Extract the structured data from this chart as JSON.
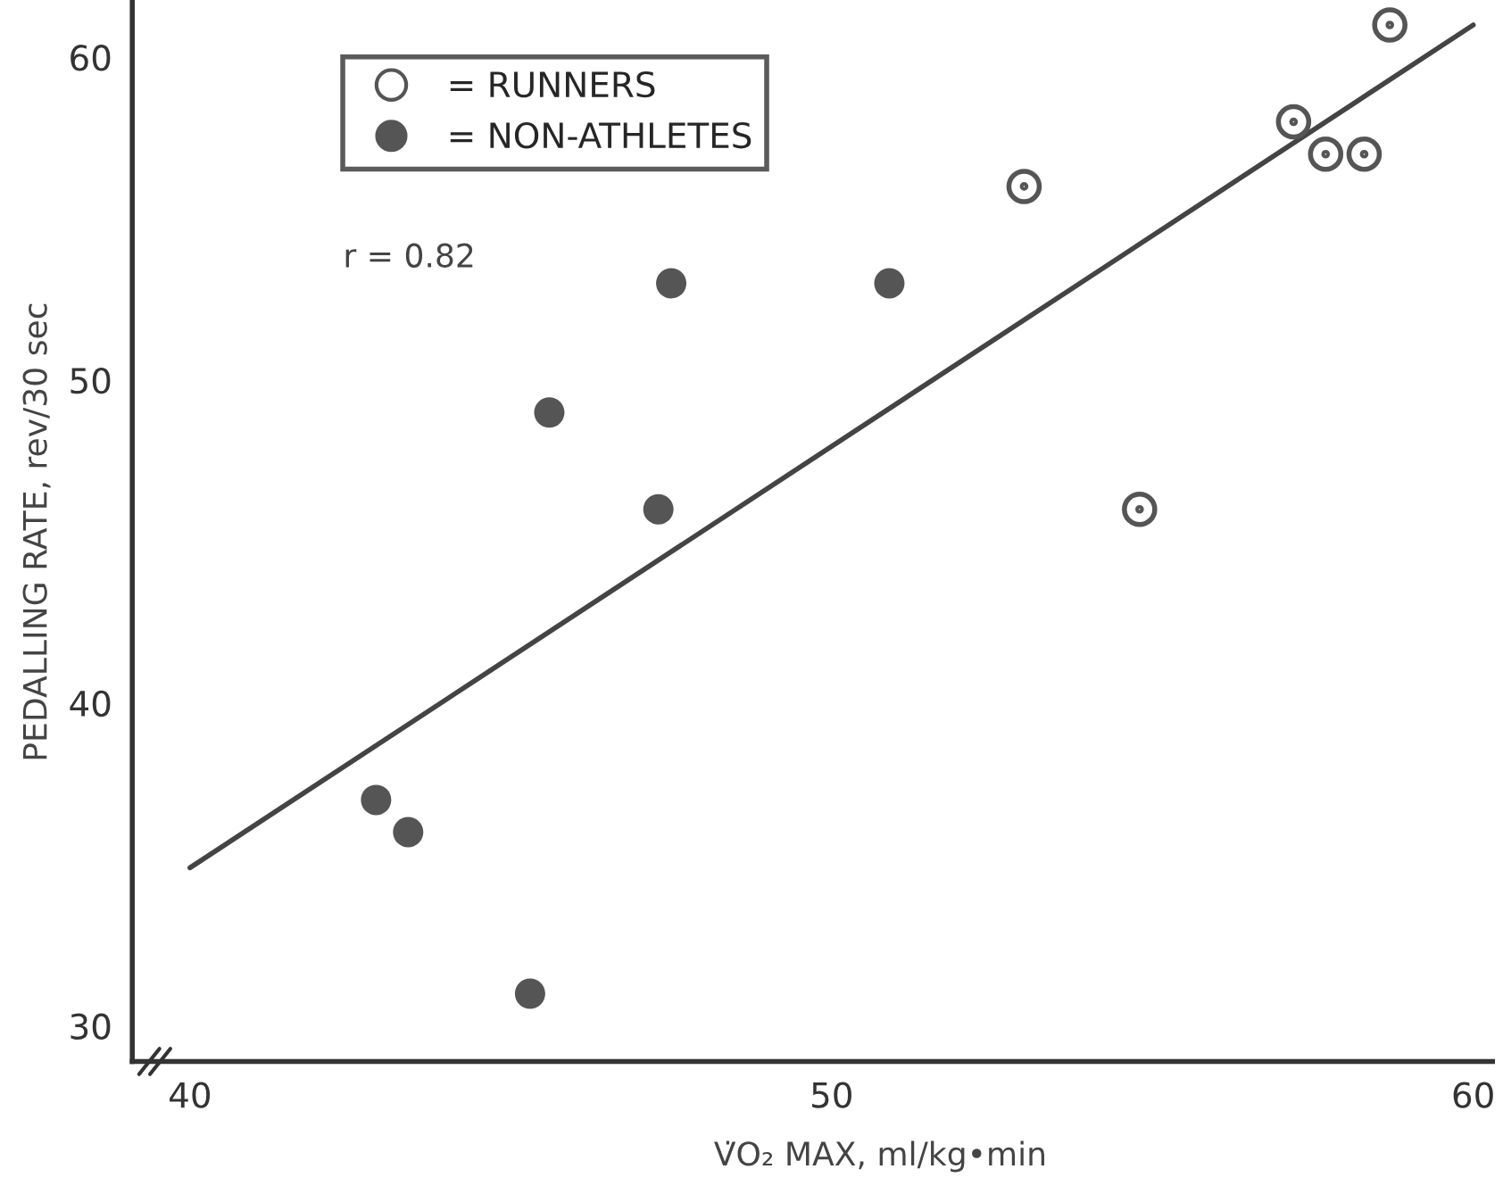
{
  "chart_data": {
    "type": "scatter",
    "xlabel": "V̇O₂ MAX, ml/kg•min",
    "ylabel": "PEDALLING RATE, rev/30 sec",
    "annotations": [
      "r = 0.82"
    ],
    "xlim": [
      39.1,
      60.3
    ],
    "ylim": [
      28.9,
      61.7
    ],
    "xticks": [
      40,
      50,
      60
    ],
    "yticks": [
      30,
      40,
      50,
      60
    ],
    "grid": false,
    "legend": "top left",
    "series": [
      {
        "name": "= RUNNERS",
        "color": "#555555",
        "marker": "circle",
        "x": [
          53.0,
          54.8,
          57.2,
          57.7,
          58.3,
          58.7
        ],
        "values": [
          56,
          46,
          58,
          57,
          57,
          61
        ]
      },
      {
        "name": "= NON-ATHLETES",
        "color": "#555555",
        "marker": "circle",
        "x": [
          47.5,
          45.6,
          47.3,
          50.9,
          42.9,
          43.4,
          45.3
        ],
        "values": [
          53,
          49,
          46,
          53,
          37,
          36,
          31
        ]
      },
      {
        "type": "line",
        "color": "#444444",
        "x": [
          40,
          60
        ],
        "values": [
          34.9,
          61.0
        ]
      }
    ]
  }
}
